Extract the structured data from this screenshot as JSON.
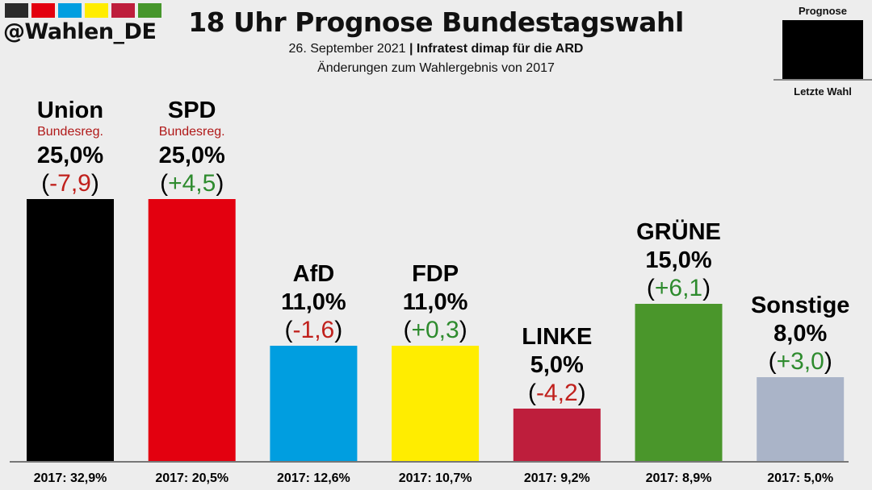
{
  "header": {
    "handle": "@Wahlen_DE",
    "swatch_colors": [
      "#2a2a2a",
      "#e3000f",
      "#009ee0",
      "#ffed00",
      "#be1e3c",
      "#46962b"
    ],
    "title": "18 Uhr Prognose Bundestagswahl",
    "subtitle_date": "26. September 2021",
    "subtitle_separator": "|",
    "subtitle_source": "Infratest dimap für die ARD",
    "subtitle_note": "Änderungen zum Wahlergebnis von 2017"
  },
  "legend": {
    "top_label": "Prognose",
    "bottom_label": "Letzte Wahl"
  },
  "colors": {
    "positive_change": "#2e8b2e",
    "negative_change": "#c0201c",
    "government_label": "#b01818"
  },
  "chart_data": {
    "type": "bar",
    "title": "18 Uhr Prognose Bundestagswahl",
    "xlabel": "",
    "ylabel": "",
    "ylim": [
      0,
      25
    ],
    "grid": false,
    "categories": [
      "Union",
      "SPD",
      "AfD",
      "FDP",
      "LINKE",
      "GRÜNE",
      "Sonstige"
    ],
    "values": [
      25.0,
      25.0,
      11.0,
      11.0,
      5.0,
      15.0,
      8.0
    ],
    "value_labels": [
      "25,0%",
      "25,0%",
      "11,0%",
      "11,0%",
      "5,0%",
      "15,0%",
      "8,0%"
    ],
    "changes": [
      -7.9,
      4.5,
      -1.6,
      0.3,
      -4.2,
      6.1,
      3.0
    ],
    "change_labels": [
      "-7,9",
      "+4,5",
      "-1,6",
      "+0,3",
      "-4,2",
      "+6,1",
      "+3,0"
    ],
    "previous_2017": [
      32.9,
      20.5,
      12.6,
      10.7,
      9.2,
      8.9,
      5.0
    ],
    "previous_labels": [
      "2017: 32,9%",
      "2017: 20,5%",
      "2017: 12,6%",
      "2017: 10,7%",
      "2017: 9,2%",
      "2017: 8,9%",
      "2017: 5,0%"
    ],
    "sublabels": [
      "Bundesreg.",
      "Bundesreg.",
      "",
      "",
      "",
      "",
      ""
    ],
    "bar_colors": [
      "#000000",
      "#e3000f",
      "#009ee0",
      "#ffed00",
      "#be1e3c",
      "#4a962b",
      "#aab4c8"
    ],
    "legend": [
      "Prognose",
      "Letzte Wahl"
    ]
  }
}
